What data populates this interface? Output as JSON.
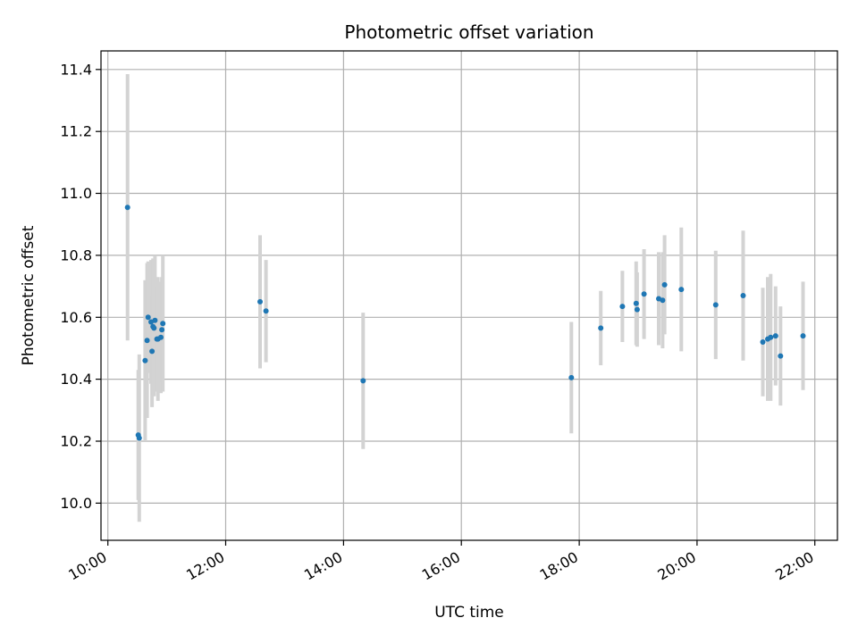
{
  "chart_data": {
    "type": "scatter",
    "title": "Photometric offset variation",
    "xlabel": "UTC time",
    "ylabel": "Photometric offset",
    "grid": true,
    "xlim": [
      "09:53",
      "22:23"
    ],
    "ylim": [
      9.88,
      11.46
    ],
    "x_ticks": [
      "10:00",
      "12:00",
      "14:00",
      "16:00",
      "18:00",
      "20:00",
      "22:00"
    ],
    "y_ticks": [
      "10.0",
      "10.2",
      "10.4",
      "10.6",
      "10.8",
      "11.0",
      "11.2",
      "11.4"
    ],
    "colors": {
      "point": "#1f77b4",
      "errorbar": "#d3d3d3",
      "grid": "#b0b0b0"
    },
    "series": [
      {
        "x": [
          "10:20",
          "10:31",
          "10:32",
          "10:38",
          "10:40",
          "10:41",
          "10:44",
          "10:45",
          "10:46",
          "10:47",
          "10:48",
          "10:50",
          "10:51",
          "10:54",
          "10:55",
          "10:56",
          "12:35",
          "12:41",
          "14:20",
          "17:52",
          "18:22",
          "18:44",
          "18:58",
          "18:59",
          "19:06",
          "19:21",
          "19:25",
          "19:27",
          "19:44",
          "20:19",
          "20:47",
          "21:07",
          "21:12",
          "21:15",
          "21:20",
          "21:25",
          "21:48"
        ],
        "y": [
          10.955,
          10.22,
          10.21,
          10.46,
          10.525,
          10.6,
          10.585,
          10.49,
          10.57,
          10.565,
          10.59,
          10.53,
          10.53,
          10.535,
          10.56,
          10.58,
          10.65,
          10.62,
          10.395,
          10.405,
          10.565,
          10.635,
          10.645,
          10.625,
          10.675,
          10.66,
          10.655,
          10.705,
          10.69,
          10.64,
          10.67,
          10.52,
          10.53,
          10.535,
          10.54,
          10.475,
          10.54
        ],
        "yerr": [
          0.43,
          0.21,
          0.27,
          0.26,
          0.25,
          0.18,
          0.2,
          0.18,
          0.22,
          0.22,
          0.21,
          0.17,
          0.2,
          0.18,
          0.17,
          0.22,
          0.215,
          0.165,
          0.22,
          0.18,
          0.12,
          0.115,
          0.135,
          0.12,
          0.145,
          0.15,
          0.155,
          0.16,
          0.2,
          0.175,
          0.21,
          0.175,
          0.2,
          0.205,
          0.16,
          0.16,
          0.175
        ]
      }
    ]
  }
}
